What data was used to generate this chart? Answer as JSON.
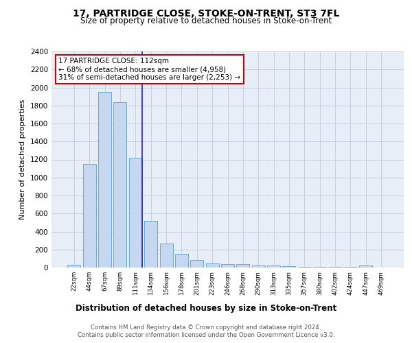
{
  "title1": "17, PARTRIDGE CLOSE, STOKE-ON-TRENT, ST3 7FL",
  "title2": "Size of property relative to detached houses in Stoke-on-Trent",
  "xlabel": "Distribution of detached houses by size in Stoke-on-Trent",
  "ylabel": "Number of detached properties",
  "categories": [
    "22sqm",
    "44sqm",
    "67sqm",
    "89sqm",
    "111sqm",
    "134sqm",
    "156sqm",
    "178sqm",
    "201sqm",
    "223sqm",
    "246sqm",
    "268sqm",
    "290sqm",
    "313sqm",
    "335sqm",
    "357sqm",
    "380sqm",
    "402sqm",
    "424sqm",
    "447sqm",
    "469sqm"
  ],
  "values": [
    30,
    1150,
    1950,
    1840,
    1220,
    520,
    265,
    155,
    85,
    45,
    40,
    35,
    20,
    20,
    15,
    10,
    10,
    5,
    5,
    20,
    0
  ],
  "bar_color": "#c5d8f0",
  "bar_edge_color": "#5a9fd4",
  "highlight_bar_index": 4,
  "highlight_line_color": "#2222cc",
  "annotation_text": "17 PARTRIDGE CLOSE: 112sqm\n← 68% of detached houses are smaller (4,958)\n31% of semi-detached houses are larger (2,253) →",
  "annotation_box_color": "#ffffff",
  "annotation_box_edge_color": "#cc0000",
  "ylim": [
    0,
    2400
  ],
  "yticks": [
    0,
    200,
    400,
    600,
    800,
    1000,
    1200,
    1400,
    1600,
    1800,
    2000,
    2200,
    2400
  ],
  "grid_color": "#c8d0e0",
  "background_color": "#e8eef8",
  "footer1": "Contains HM Land Registry data © Crown copyright and database right 2024.",
  "footer2": "Contains public sector information licensed under the Open Government Licence v3.0."
}
